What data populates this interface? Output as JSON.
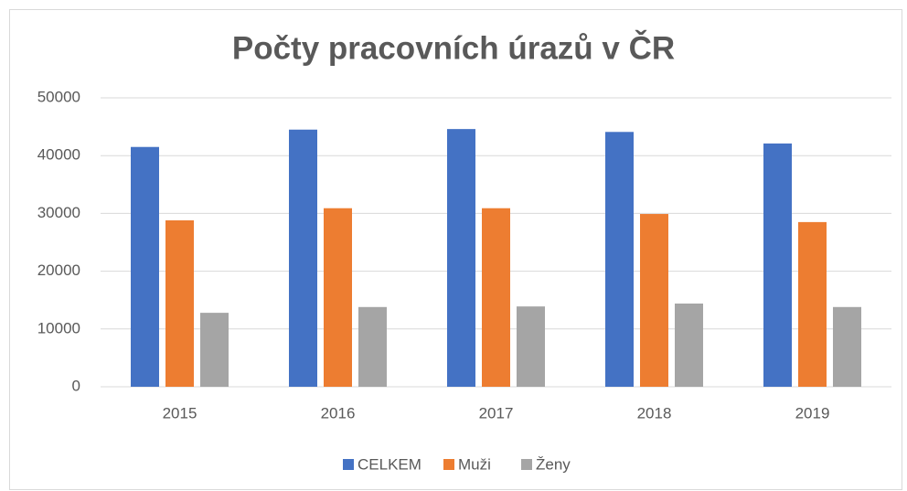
{
  "chart_data": {
    "type": "bar",
    "title": "Počty pracovních úrazů v ČR",
    "categories": [
      "2015",
      "2016",
      "2017",
      "2018",
      "2019"
    ],
    "series": [
      {
        "name": "CELKEM",
        "color": "#4472c4",
        "values": [
          41500,
          44500,
          44600,
          44100,
          42100
        ]
      },
      {
        "name": "Muži",
        "color": "#ed7d31",
        "values": [
          28800,
          30900,
          30900,
          29900,
          28500
        ]
      },
      {
        "name": "Ženy",
        "color": "#a5a5a5",
        "values": [
          12800,
          13800,
          13900,
          14400,
          13800
        ]
      }
    ],
    "ylim": [
      0,
      50000
    ],
    "yticks": [
      0,
      10000,
      20000,
      30000,
      40000,
      50000
    ],
    "grid": true,
    "legend": "bottom"
  }
}
